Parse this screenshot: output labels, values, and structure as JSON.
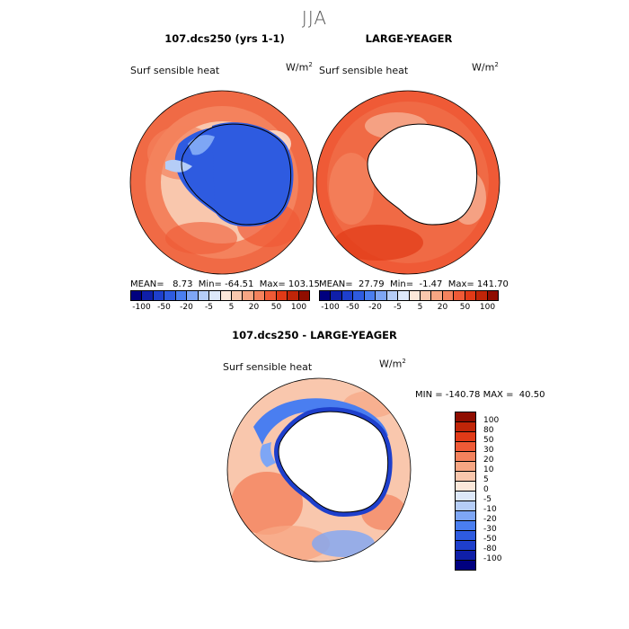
{
  "season": "JJA",
  "panel1": {
    "title": "107.dcs250 (yrs 1-1)",
    "variable": "Surf sensible heat",
    "units": "W/m",
    "units_sup": "2",
    "stats": "MEAN=   8.73  Min= -64.51  Max= 103.15"
  },
  "panel2": {
    "title": "LARGE-YEAGER",
    "variable": "Surf sensible heat",
    "units": "W/m",
    "units_sup": "2",
    "stats": "MEAN=  27.79  Min=  -1.47  Max= 141.70"
  },
  "panel3": {
    "title": "107.dcs250 - LARGE-YEAGER",
    "variable": "Surf sensible heat",
    "units": "W/m",
    "units_sup": "2",
    "stats": "MIN = -140.78 MAX =  40.50"
  },
  "colorbar_top": {
    "colors": [
      "#00007f",
      "#0f1fa8",
      "#1e3fcc",
      "#2e5be0",
      "#4a7ef0",
      "#7ea6f5",
      "#b5cdf7",
      "#dde8f9",
      "#fbe8da",
      "#f9c7ad",
      "#f7a683",
      "#f4825d",
      "#ef5a36",
      "#e13a17",
      "#c02508",
      "#8f0d00"
    ],
    "ticks": [
      "-100",
      "-50",
      "-20",
      "-5",
      "5",
      "20",
      "50",
      "100"
    ]
  },
  "colorbar_diff": {
    "colors": [
      "#8f0d00",
      "#c02508",
      "#e13a17",
      "#ef5a36",
      "#f4825d",
      "#f7a683",
      "#f9c7ad",
      "#fbe8da",
      "#dde8f9",
      "#b5cdf7",
      "#7ea6f5",
      "#4a7ef0",
      "#2e5be0",
      "#1e3fcc",
      "#0f1fa8",
      "#00007f"
    ],
    "labels": [
      "100",
      "80",
      "50",
      "30",
      "20",
      "10",
      "5",
      "0",
      "-5",
      "-10",
      "-20",
      "-30",
      "-50",
      "-80",
      "-100"
    ]
  }
}
